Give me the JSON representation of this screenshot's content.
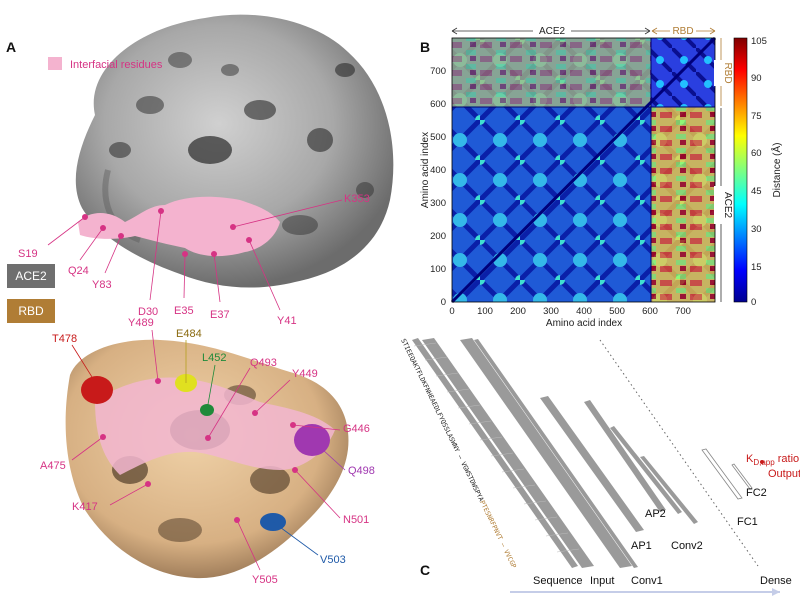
{
  "panels": {
    "a": "A",
    "b": "B",
    "c": "C"
  },
  "legend": {
    "interfacial": "Interfacial residues",
    "interfacial_color": "#f4b3cf"
  },
  "tags": {
    "ace2": "ACE2",
    "rbd": "RBD",
    "ace2_color": "#6f6f6f",
    "rbd_color": "#b07d35"
  },
  "ace2_residues": {
    "s19": "S19",
    "q24": "Q24",
    "y83": "Y83",
    "d30": "D30",
    "e35": "E35",
    "e37": "E37",
    "k353": "K353",
    "y41": "Y41"
  },
  "rbd_residues": {
    "t478": "T478",
    "y489": "Y489",
    "e484": "E484",
    "l452": "L452",
    "q493": "Q493",
    "y449": "Y449",
    "g446": "G446",
    "q498": "Q498",
    "n501": "N501",
    "v503": "V503",
    "y505": "Y505",
    "k417": "K417",
    "a475": "A475"
  },
  "heatmap": {
    "xlabel": "Amino acid index",
    "ylabel": "Amino acid index",
    "x_ticks": [
      "0",
      "100",
      "200",
      "300",
      "400",
      "500",
      "600",
      "700"
    ],
    "y_ticks": [
      "0",
      "100",
      "200",
      "300",
      "400",
      "500",
      "600",
      "700"
    ],
    "colorbar_label": "Distance (Å)",
    "colorbar_ticks": [
      "0",
      "15",
      "30",
      "45",
      "60",
      "75",
      "90",
      "105"
    ],
    "colorbar_range": [
      0,
      105
    ],
    "colormap": "jet",
    "regions": {
      "ace2": "ACE2",
      "rbd": "RBD"
    }
  },
  "network": {
    "sequence_ace2": "STIEEQAKTFLDKFNHEAEDLFYQSSLASWNY — VGWSTDWSPYA",
    "sequence_rbd": "PTESNRFPNVT — VVCGP",
    "labels": {
      "ap1": "AP1",
      "conv2": "Conv2",
      "ap2": "AP2",
      "fc1": "FC1",
      "fc2": "FC2"
    },
    "kd_sub": "D,app",
    "kd_suffix": " ratio",
    "output_label": "Output",
    "bottom": {
      "sequence": "Sequence",
      "input": "Input",
      "conv1": "Conv1",
      "dense": "Dense"
    }
  }
}
